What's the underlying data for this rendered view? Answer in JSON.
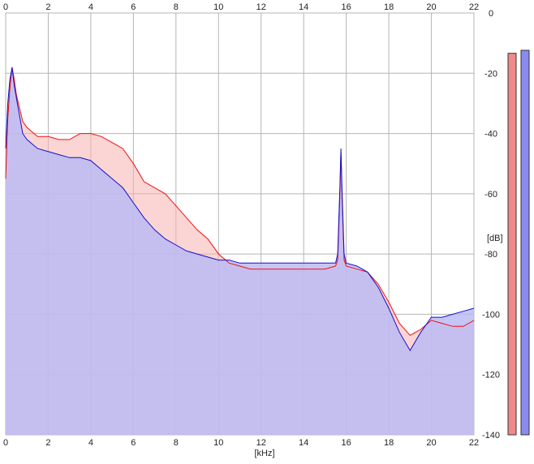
{
  "chart_data": {
    "type": "area",
    "x_unit_label": "[kHz]",
    "y_unit_label": "[dB]",
    "x_range": [
      0,
      22
    ],
    "y_range": [
      -140,
      0
    ],
    "x_ticks": [
      "0",
      "2",
      "4",
      "6",
      "8",
      "10",
      "12",
      "14",
      "16",
      "18",
      "20",
      "22"
    ],
    "y_ticks": [
      "0",
      "-20",
      "-40",
      "-60",
      "-80",
      "-100",
      "-120",
      "-140"
    ],
    "grid": true,
    "series": [
      {
        "color": "#ee1111",
        "fill": "#f7b0b0",
        "points": [
          [
            0.0,
            -55
          ],
          [
            0.1,
            -35
          ],
          [
            0.2,
            -25
          ],
          [
            0.3,
            -18
          ],
          [
            0.4,
            -22
          ],
          [
            0.5,
            -27
          ],
          [
            0.6,
            -30
          ],
          [
            0.8,
            -36
          ],
          [
            1.0,
            -38
          ],
          [
            1.5,
            -41
          ],
          [
            2.0,
            -41
          ],
          [
            2.5,
            -42
          ],
          [
            3.0,
            -42
          ],
          [
            3.5,
            -40
          ],
          [
            4.0,
            -40
          ],
          [
            4.5,
            -41
          ],
          [
            5.0,
            -43
          ],
          [
            5.5,
            -45
          ],
          [
            6.0,
            -50
          ],
          [
            6.5,
            -56
          ],
          [
            7.0,
            -58
          ],
          [
            7.5,
            -60
          ],
          [
            8.0,
            -64
          ],
          [
            8.5,
            -68
          ],
          [
            9.0,
            -72
          ],
          [
            9.5,
            -75
          ],
          [
            10.0,
            -80
          ],
          [
            10.5,
            -83
          ],
          [
            11.0,
            -84
          ],
          [
            11.5,
            -85
          ],
          [
            12.0,
            -85
          ],
          [
            12.5,
            -85
          ],
          [
            13.0,
            -85
          ],
          [
            13.5,
            -85
          ],
          [
            14.0,
            -85
          ],
          [
            14.5,
            -85
          ],
          [
            15.0,
            -85
          ],
          [
            15.5,
            -84
          ],
          [
            15.6,
            -82
          ],
          [
            15.7,
            -60
          ],
          [
            15.75,
            -46
          ],
          [
            15.8,
            -60
          ],
          [
            15.9,
            -82
          ],
          [
            16.0,
            -84
          ],
          [
            16.5,
            -85
          ],
          [
            17.0,
            -86
          ],
          [
            17.5,
            -90
          ],
          [
            18.0,
            -96
          ],
          [
            18.5,
            -103
          ],
          [
            19.0,
            -107
          ],
          [
            19.5,
            -105
          ],
          [
            20.0,
            -102
          ],
          [
            20.5,
            -103
          ],
          [
            21.0,
            -104
          ],
          [
            21.5,
            -104
          ],
          [
            22.0,
            -102
          ]
        ]
      },
      {
        "color": "#1111cc",
        "fill": "#bbbbf5",
        "points": [
          [
            0.0,
            -45
          ],
          [
            0.1,
            -30
          ],
          [
            0.2,
            -22
          ],
          [
            0.3,
            -18
          ],
          [
            0.4,
            -24
          ],
          [
            0.5,
            -28
          ],
          [
            0.6,
            -32
          ],
          [
            0.8,
            -40
          ],
          [
            1.0,
            -42
          ],
          [
            1.5,
            -45
          ],
          [
            2.0,
            -46
          ],
          [
            2.5,
            -47
          ],
          [
            3.0,
            -48
          ],
          [
            3.5,
            -48
          ],
          [
            4.0,
            -49
          ],
          [
            4.5,
            -52
          ],
          [
            5.0,
            -55
          ],
          [
            5.5,
            -58
          ],
          [
            6.0,
            -63
          ],
          [
            6.5,
            -68
          ],
          [
            7.0,
            -72
          ],
          [
            7.5,
            -75
          ],
          [
            8.0,
            -77
          ],
          [
            8.5,
            -79
          ],
          [
            9.0,
            -80
          ],
          [
            9.5,
            -81
          ],
          [
            10.0,
            -82
          ],
          [
            10.5,
            -82
          ],
          [
            11.0,
            -83
          ],
          [
            11.5,
            -83
          ],
          [
            12.0,
            -83
          ],
          [
            12.5,
            -83
          ],
          [
            13.0,
            -83
          ],
          [
            13.5,
            -83
          ],
          [
            14.0,
            -83
          ],
          [
            14.5,
            -83
          ],
          [
            15.0,
            -83
          ],
          [
            15.5,
            -83
          ],
          [
            15.6,
            -80
          ],
          [
            15.7,
            -58
          ],
          [
            15.75,
            -45
          ],
          [
            15.8,
            -58
          ],
          [
            15.9,
            -80
          ],
          [
            16.0,
            -83
          ],
          [
            16.5,
            -84
          ],
          [
            17.0,
            -86
          ],
          [
            17.5,
            -91
          ],
          [
            18.0,
            -98
          ],
          [
            18.5,
            -106
          ],
          [
            19.0,
            -112
          ],
          [
            19.5,
            -106
          ],
          [
            20.0,
            -101
          ],
          [
            20.5,
            -101
          ],
          [
            21.0,
            -100
          ],
          [
            21.5,
            -99
          ],
          [
            22.0,
            -98
          ]
        ]
      }
    ],
    "level_meters": [
      {
        "color": "#f08a8a",
        "level_db": -8
      },
      {
        "color": "#8a8af0",
        "level_db": -7
      }
    ]
  }
}
